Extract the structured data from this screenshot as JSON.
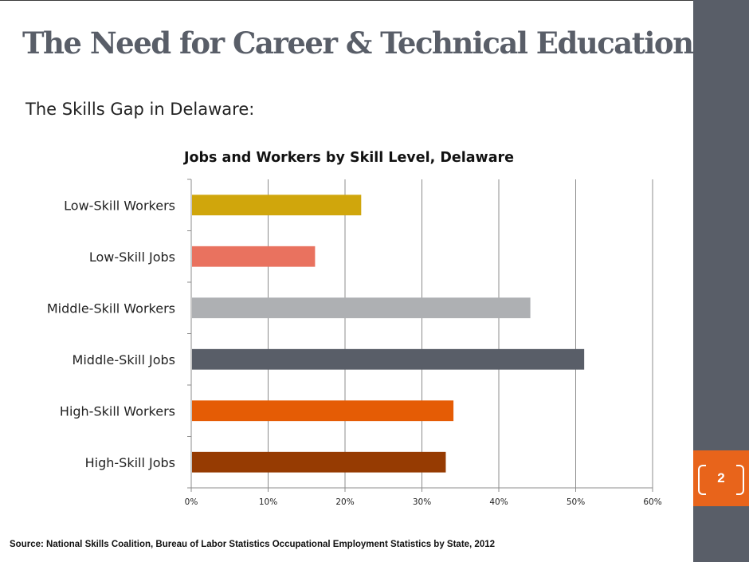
{
  "slide": {
    "title": "The Need for Career & Technical Education",
    "subtitle": "The Skills Gap in Delaware:",
    "page_number": "2",
    "source": "Source: National Skills Coalition, Bureau of Labor Statistics Occupational Employment Statistics by State, 2012"
  },
  "colors": {
    "sidebar": "#595e68",
    "accent": "#e8641b",
    "title": "#595e68"
  },
  "chart_data": {
    "type": "bar",
    "orientation": "horizontal",
    "title": "Jobs and Workers by Skill Level, Delaware",
    "xlabel": "",
    "ylabel": "",
    "xlim": [
      0,
      60
    ],
    "x_ticks": [
      "0%",
      "10%",
      "20%",
      "30%",
      "40%",
      "50%",
      "60%"
    ],
    "categories": [
      "Low-Skill Workers",
      "Low-Skill Jobs",
      "Middle-Skill Workers",
      "Middle-Skill Jobs",
      "High-Skill Workers",
      "High-Skill Jobs"
    ],
    "values": [
      22,
      16,
      44,
      51,
      34,
      33
    ],
    "bar_colors": [
      "#d0a60c",
      "#e9725f",
      "#aeb0b3",
      "#595e68",
      "#e55c05",
      "#963b02"
    ],
    "grid": true,
    "legend": "none"
  }
}
